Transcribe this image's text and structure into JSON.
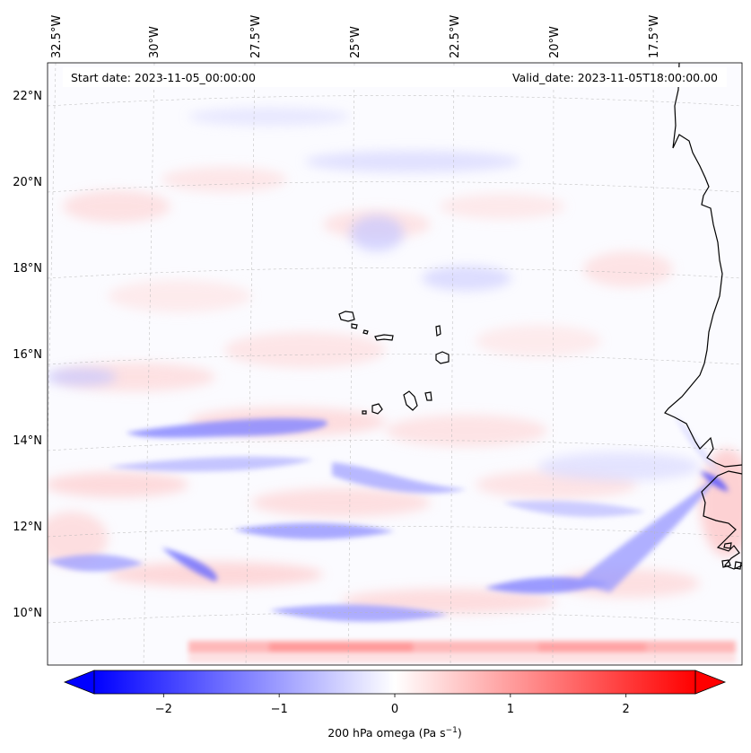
{
  "header": {
    "start_date": "Start date: 2023-11-05_00:00:00",
    "valid_date": "Valid_date: 2023-11-05T18:00:00.00"
  },
  "map": {
    "lon_labels": [
      "32.5°W",
      "30°W",
      "27.5°W",
      "25°W",
      "22.5°W",
      "20°W",
      "17.5°W"
    ],
    "lat_labels": [
      "22°N",
      "20°N",
      "18°N",
      "16°N",
      "14°N",
      "12°N",
      "10°N"
    ],
    "field": "200 hPa omega",
    "colormap": "bwr",
    "colors": {
      "negative": "#0000ff",
      "zero": "#ffffff",
      "positive": "#ff0000",
      "coastline": "#000000",
      "grid": "#b0b0b0"
    }
  },
  "colorbar": {
    "ticks": [
      "−2",
      "−1",
      "0",
      "1",
      "2"
    ],
    "tick_values": [
      -2,
      -1,
      0,
      1,
      2
    ],
    "range": [
      -2.6,
      2.6
    ],
    "extend": "both",
    "title_main": "200 hPa omega (Pa s",
    "title_sup": "−1",
    "title_end": ")"
  }
}
